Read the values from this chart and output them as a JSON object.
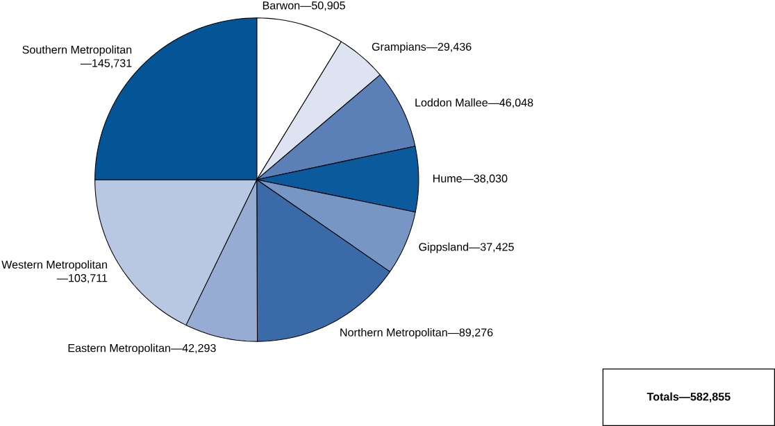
{
  "chart_data": {
    "type": "pie",
    "categories": [
      "Barwon",
      "Grampians",
      "Loddon Mallee",
      "Hume",
      "Gippsland",
      "Northern Metropolitan",
      "Eastern Metropolitan",
      "Western Metropolitan",
      "Southern Metropolitan"
    ],
    "values": [
      50905,
      29436,
      46048,
      38030,
      37425,
      89276,
      42293,
      103711,
      145731
    ],
    "value_labels": [
      "—50,905",
      "—29,436",
      "—46,048",
      "—38,030",
      "—37,425",
      "—89,276",
      "—42,293",
      "—103,711",
      "—145,731"
    ],
    "colors": [
      "#ffffff",
      "#dde3f1",
      "#5b80b8",
      "#0a5a9c",
      "#7896c4",
      "#3a6ba8",
      "#97acd3",
      "#b8c7e2",
      "#045595"
    ],
    "annotations": [
      "Totals—582,855"
    ]
  }
}
